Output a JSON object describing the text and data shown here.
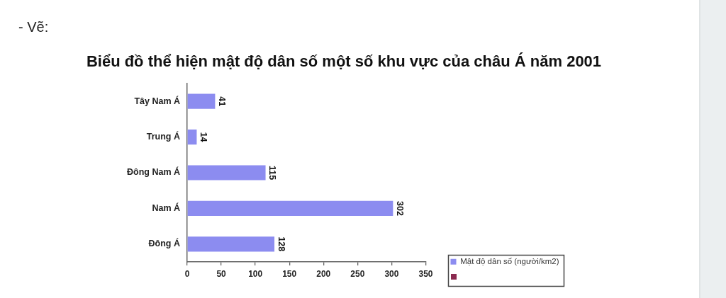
{
  "chart_data": {
    "type": "bar",
    "orientation": "horizontal",
    "title": "Biểu đồ thể hiện mật độ dân số một số khu vực của châu Á năm 2001",
    "annotations": [
      "- Vẽ:"
    ],
    "categories": [
      "Tây Nam Á",
      "Trung Á",
      "Đông Nam Á",
      "Nam Á",
      "Đông Á"
    ],
    "series": [
      {
        "name": "Mật độ dân số (người/km2)",
        "color": "#8c8cf0",
        "values": [
          41,
          14,
          115,
          302,
          128
        ]
      },
      {
        "color": "#8b2a50",
        "values": [
          null,
          null,
          null,
          null,
          null
        ]
      }
    ],
    "xlim": [
      0,
      350
    ],
    "xticks": [
      0,
      50,
      100,
      150,
      200,
      250,
      300,
      350
    ],
    "grid": false,
    "data_labels": true,
    "legend": "bottom right"
  }
}
